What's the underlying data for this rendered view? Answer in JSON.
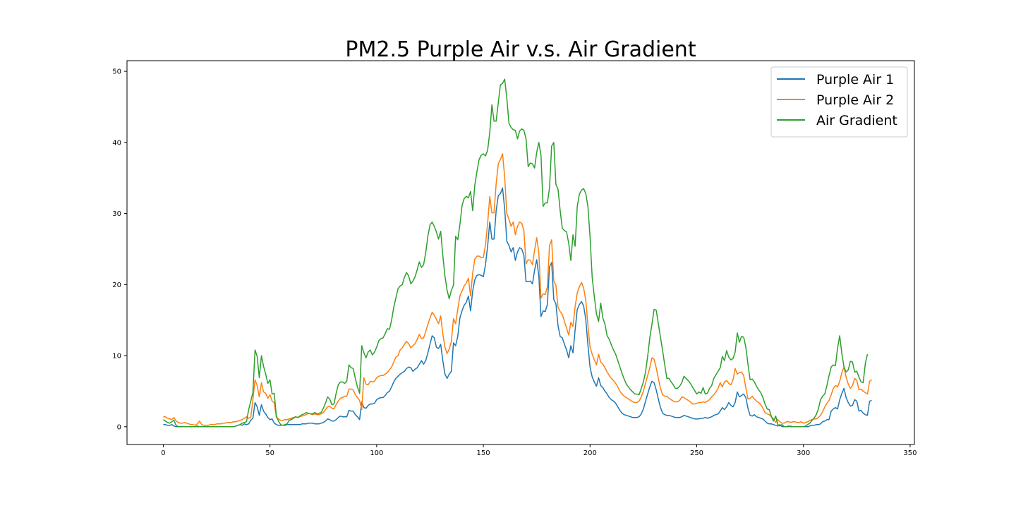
{
  "chart_data": {
    "type": "line",
    "title": "PM2.5 Purple Air v.s. Air Gradient",
    "xlabel": "",
    "ylabel": "",
    "xlim": [
      -17,
      352
    ],
    "ylim": [
      -2.5,
      51.5
    ],
    "x_ticks": [
      0,
      50,
      100,
      150,
      200,
      250,
      300,
      350
    ],
    "y_ticks": [
      0,
      10,
      20,
      30,
      40,
      50
    ],
    "grid": false,
    "legend_position": "top-right",
    "x_step": 1,
    "series": [
      {
        "name": "Purple Air 1",
        "color": "#1f77b4",
        "values": [
          0.3,
          0.3,
          0.2,
          0.2,
          0.3,
          0.1,
          0.0,
          0.0,
          0.0,
          0.0,
          0.0,
          0.0,
          0.0,
          0.0,
          0.0,
          0.0,
          0.1,
          0.0,
          0.0,
          0.0,
          0.0,
          0.0,
          0.0,
          0.0,
          0.0,
          0.0,
          0.0,
          0.0,
          0.0,
          0.0,
          0.0,
          0.0,
          0.0,
          0.0,
          0.1,
          0.2,
          0.3,
          0.2,
          0.4,
          0.3,
          0.4,
          0.9,
          1.2,
          3.4,
          2.8,
          1.6,
          3.1,
          2.2,
          1.8,
          1.3,
          1.0,
          1.1,
          0.5,
          0.3,
          0.2,
          0.2,
          0.2,
          0.2,
          0.3,
          0.3,
          0.3,
          0.3,
          0.3,
          0.3,
          0.3,
          0.4,
          0.4,
          0.4,
          0.5,
          0.5,
          0.5,
          0.4,
          0.4,
          0.4,
          0.5,
          0.6,
          0.8,
          1.1,
          1.0,
          0.8,
          0.8,
          1.0,
          1.3,
          1.5,
          1.4,
          1.4,
          1.4,
          2.3,
          2.2,
          2.2,
          1.7,
          1.4,
          1.0,
          3.5,
          2.7,
          2.6,
          3.0,
          3.2,
          3.2,
          3.3,
          3.8,
          4.0,
          4.1,
          4.1,
          4.4,
          4.8,
          5.0,
          5.6,
          6.3,
          6.8,
          7.1,
          7.4,
          7.6,
          7.8,
          8.2,
          8.4,
          8.3,
          7.8,
          8.1,
          8.3,
          8.8,
          9.3,
          8.8,
          9.3,
          10.4,
          11.6,
          12.8,
          12.5,
          11.2,
          11.0,
          11.6,
          9.3,
          7.4,
          6.8,
          7.4,
          7.8,
          11.8,
          11.4,
          12.7,
          15.3,
          16.3,
          17.1,
          17.5,
          18.4,
          16.3,
          19.1,
          20.7,
          21.3,
          21.4,
          21.3,
          21.1,
          22.8,
          25.4,
          28.8,
          26.4,
          26.4,
          30.4,
          32.5,
          32.8,
          33.6,
          30.6,
          26.1,
          25.5,
          24.6,
          25.2,
          23.4,
          24.6,
          25.2,
          25.0,
          24.1,
          20.4,
          20.4,
          20.5,
          20.1,
          22.0,
          23.5,
          21.2,
          15.5,
          16.3,
          16.2,
          17.2,
          22.5,
          23.1,
          17.9,
          17.3,
          14.2,
          12.7,
          12.5,
          11.6,
          10.8,
          9.7,
          11.4,
          10.4,
          13.6,
          16.5,
          17.2,
          17.6,
          17.0,
          15.1,
          11.5,
          8.4,
          7.0,
          6.3,
          5.7,
          6.9,
          5.8,
          5.5,
          5.0,
          4.6,
          4.1,
          3.8,
          3.6,
          3.3,
          2.8,
          2.3,
          1.9,
          1.7,
          1.6,
          1.5,
          1.4,
          1.3,
          1.3,
          1.3,
          1.4,
          1.8,
          2.5,
          3.6,
          4.6,
          5.6,
          6.4,
          6.2,
          5.2,
          3.9,
          2.7,
          1.9,
          1.7,
          1.6,
          1.6,
          1.5,
          1.4,
          1.3,
          1.3,
          1.3,
          1.4,
          1.6,
          1.5,
          1.4,
          1.3,
          1.2,
          1.1,
          1.1,
          1.1,
          1.2,
          1.2,
          1.3,
          1.2,
          1.3,
          1.4,
          1.6,
          1.7,
          1.8,
          2.2,
          2.7,
          2.4,
          2.8,
          3.4,
          3.0,
          2.8,
          3.4,
          4.9,
          4.2,
          4.4,
          4.6,
          4.1,
          2.6,
          1.6,
          1.5,
          1.7,
          1.4,
          1.3,
          1.2,
          1.1,
          0.8,
          0.5,
          0.4,
          0.4,
          0.3,
          0.2,
          0.1,
          0.3,
          0.0,
          0.0,
          0.0,
          0.1,
          0.0,
          0.0,
          0.0,
          0.0,
          0.0,
          0.0,
          0.0,
          0.0,
          0.0,
          0.1,
          0.2,
          0.2,
          0.3,
          0.3,
          0.4,
          0.7,
          0.8,
          1.0,
          1.0,
          2.2,
          2.5,
          2.7,
          2.5,
          3.8,
          4.7,
          5.4,
          4.1,
          3.4,
          2.9,
          3.0,
          3.8,
          3.6,
          2.2,
          2.3,
          1.9,
          1.7,
          1.6,
          3.6,
          3.7
        ]
      },
      {
        "name": "Purple Air 2",
        "color": "#ff7f0e",
        "values": [
          1.4,
          1.4,
          1.2,
          1.1,
          1.0,
          1.3,
          0.8,
          0.6,
          0.5,
          0.5,
          0.6,
          0.5,
          0.4,
          0.3,
          0.3,
          0.2,
          0.4,
          0.8,
          0.3,
          0.2,
          0.2,
          0.2,
          0.3,
          0.3,
          0.3,
          0.4,
          0.4,
          0.4,
          0.5,
          0.5,
          0.6,
          0.6,
          0.6,
          0.7,
          0.7,
          0.8,
          0.9,
          1.0,
          1.2,
          1.4,
          1.2,
          1.3,
          3.8,
          6.6,
          5.8,
          4.2,
          6.2,
          4.9,
          4.7,
          4.0,
          4.5,
          3.6,
          3.4,
          1.3,
          1.1,
          0.9,
          0.9,
          1.0,
          1.0,
          1.1,
          1.2,
          1.3,
          1.4,
          1.3,
          1.4,
          1.5,
          1.6,
          1.7,
          1.9,
          1.8,
          1.7,
          1.8,
          1.7,
          1.7,
          1.8,
          2.0,
          2.4,
          2.8,
          2.9,
          2.6,
          2.5,
          3.1,
          3.6,
          4.0,
          4.1,
          4.3,
          4.3,
          5.3,
          5.3,
          5.2,
          4.5,
          4.1,
          3.7,
          2.4,
          6.9,
          6.0,
          5.9,
          6.4,
          6.3,
          6.4,
          6.9,
          7.1,
          7.2,
          7.2,
          7.4,
          7.6,
          8.0,
          8.4,
          9.1,
          9.8,
          10.0,
          10.8,
          11.1,
          11.6,
          12.0,
          11.7,
          11.1,
          11.4,
          11.7,
          12.3,
          13.0,
          12.4,
          12.5,
          13.4,
          14.4,
          15.3,
          16.1,
          15.7,
          15.1,
          14.5,
          15.6,
          13.1,
          11.2,
          10.3,
          10.9,
          12.0,
          15.2,
          14.5,
          16.5,
          18.4,
          19.1,
          19.8,
          20.2,
          20.9,
          18.4,
          21.6,
          23.6,
          24.0,
          24.0,
          23.8,
          23.8,
          25.6,
          28.6,
          32.4,
          30.1,
          30.1,
          34.2,
          37.0,
          37.6,
          38.4,
          35.1,
          30.0,
          29.2,
          28.2,
          28.8,
          27.0,
          28.2,
          28.8,
          28.6,
          27.6,
          22.9,
          23.5,
          23.4,
          22.8,
          24.8,
          26.6,
          24.5,
          18.1,
          18.7,
          18.6,
          19.7,
          25.5,
          26.3,
          20.5,
          19.9,
          16.8,
          16.2,
          15.8,
          14.8,
          13.9,
          12.9,
          14.7,
          14.1,
          16.9,
          18.8,
          19.7,
          20.3,
          19.5,
          17.8,
          14.3,
          11.2,
          10.2,
          9.4,
          8.7,
          10.2,
          9.1,
          8.8,
          8.3,
          7.7,
          7.2,
          6.8,
          6.5,
          6.1,
          5.6,
          5.0,
          4.6,
          4.3,
          4.1,
          3.9,
          3.7,
          3.5,
          3.4,
          3.4,
          3.6,
          4.2,
          5.0,
          6.1,
          7.2,
          8.3,
          9.7,
          9.5,
          8.3,
          6.8,
          5.4,
          4.5,
          4.3,
          4.3,
          4.0,
          3.8,
          3.6,
          3.5,
          3.5,
          3.7,
          4.2,
          4.1,
          3.9,
          3.7,
          3.5,
          3.2,
          3.2,
          3.3,
          3.4,
          3.4,
          3.5,
          3.4,
          3.6,
          3.8,
          4.2,
          4.5,
          4.9,
          5.4,
          6.2,
          5.6,
          6.3,
          6.5,
          6.1,
          5.9,
          6.6,
          8.2,
          7.4,
          7.6,
          7.7,
          7.2,
          5.5,
          3.9,
          4.0,
          4.3,
          3.9,
          3.6,
          3.4,
          3.1,
          2.6,
          2.0,
          1.8,
          1.7,
          1.4,
          1.1,
          0.6,
          1.0,
          0.7,
          0.5,
          0.5,
          0.7,
          0.7,
          0.6,
          0.7,
          0.7,
          0.6,
          0.6,
          0.7,
          0.5,
          0.6,
          0.7,
          0.9,
          1.0,
          1.1,
          1.1,
          1.3,
          1.6,
          2.1,
          2.8,
          3.3,
          3.7,
          4.5,
          5.4,
          5.8,
          5.6,
          6.4,
          7.6,
          8.4,
          7.0,
          6.0,
          5.4,
          5.8,
          6.8,
          6.5,
          5.2,
          5.3,
          5.0,
          4.8,
          4.6,
          6.4,
          6.6
        ]
      },
      {
        "name": "Air Gradient",
        "color": "#2ca02c",
        "values": [
          1.0,
          0.8,
          0.6,
          0.5,
          0.7,
          0.9,
          0.2,
          0.0,
          0.0,
          0.0,
          0.0,
          0.0,
          0.0,
          0.0,
          0.0,
          0.0,
          0.0,
          0.0,
          0.0,
          0.0,
          0.0,
          0.0,
          0.0,
          0.0,
          0.0,
          0.0,
          0.0,
          0.0,
          0.0,
          0.0,
          0.0,
          0.0,
          0.0,
          0.0,
          0.1,
          0.2,
          0.3,
          0.5,
          0.6,
          0.7,
          2.4,
          3.6,
          4.8,
          10.8,
          9.9,
          6.9,
          10.0,
          8.5,
          7.4,
          6.1,
          6.6,
          4.6,
          4.7,
          1.5,
          0.8,
          0.3,
          0.2,
          0.3,
          0.4,
          0.9,
          1.0,
          1.2,
          1.4,
          1.3,
          1.5,
          1.7,
          1.8,
          2.0,
          1.9,
          1.8,
          1.8,
          2.0,
          1.8,
          1.9,
          2.0,
          2.6,
          3.3,
          4.2,
          3.9,
          3.1,
          3.2,
          4.7,
          5.9,
          6.3,
          6.3,
          6.1,
          6.4,
          8.7,
          8.3,
          8.2,
          6.8,
          5.6,
          4.7,
          11.4,
          10.4,
          9.7,
          10.5,
          10.8,
          10.1,
          10.5,
          11.2,
          12.1,
          12.4,
          12.5,
          13.1,
          13.8,
          13.7,
          15.0,
          16.8,
          18.1,
          19.4,
          19.8,
          20.0,
          21.0,
          21.7,
          21.2,
          20.1,
          20.5,
          21.1,
          22.1,
          23.2,
          22.4,
          22.8,
          24.5,
          26.8,
          28.4,
          28.8,
          28.2,
          27.4,
          26.4,
          27.5,
          24.1,
          21.2,
          19.2,
          18.0,
          19.2,
          19.9,
          26.8,
          26.3,
          28.4,
          31.1,
          32.1,
          32.4,
          32.2,
          33.1,
          30.4,
          34.0,
          35.9,
          37.6,
          38.2,
          38.4,
          38.1,
          38.9,
          41.4,
          45.3,
          43.0,
          43.0,
          45.6,
          48.1,
          48.3,
          48.9,
          46.2,
          42.7,
          42.1,
          41.8,
          41.7,
          40.5,
          41.6,
          41.9,
          41.7,
          40.5,
          36.6,
          37.1,
          37.0,
          36.4,
          38.6,
          40.0,
          38.2,
          31.0,
          31.5,
          31.5,
          33.6,
          39.5,
          40.0,
          34.1,
          33.4,
          30.4,
          27.9,
          27.6,
          27.4,
          25.8,
          23.4,
          27.0,
          25.4,
          31.0,
          32.7,
          33.3,
          33.5,
          32.8,
          31.0,
          26.7,
          21.0,
          18.3,
          15.9,
          14.8,
          17.4,
          15.3,
          14.4,
          12.8,
          12.3,
          11.5,
          10.8,
          10.2,
          9.3,
          8.4,
          7.5,
          6.7,
          6.0,
          5.6,
          5.2,
          4.9,
          4.6,
          4.6,
          4.5,
          5.4,
          6.3,
          7.7,
          9.9,
          12.5,
          14.4,
          16.5,
          16.4,
          14.5,
          12.6,
          10.7,
          8.7,
          6.8,
          6.8,
          6.3,
          5.9,
          5.4,
          5.4,
          5.7,
          6.2,
          7.1,
          6.8,
          6.5,
          6.1,
          5.6,
          5.1,
          4.6,
          4.9,
          4.7,
          5.5,
          4.6,
          4.7,
          5.4,
          5.8,
          6.8,
          7.3,
          7.8,
          8.3,
          9.9,
          9.3,
          10.7,
          9.8,
          9.4,
          9.6,
          10.5,
          13.2,
          11.9,
          12.7,
          12.6,
          11.2,
          8.8,
          6.6,
          6.7,
          6.3,
          5.7,
          5.2,
          4.8,
          4.1,
          3.2,
          2.5,
          2.4,
          1.4,
          0.8,
          1.5,
          0.3,
          0.1,
          0.3,
          0.0,
          0.0,
          0.0,
          0.1,
          0.0,
          0.0,
          0.0,
          0.0,
          0.0,
          0.0,
          0.1,
          0.3,
          0.5,
          0.9,
          1.2,
          1.7,
          2.5,
          3.8,
          4.3,
          4.6,
          5.8,
          7.2,
          8.4,
          8.7,
          8.6,
          11.1,
          12.8,
          10.3,
          8.4,
          7.7,
          8.0,
          9.2,
          9.1,
          7.7,
          7.8,
          7.0,
          6.3,
          6.2,
          8.9,
          10.2
        ]
      }
    ]
  }
}
